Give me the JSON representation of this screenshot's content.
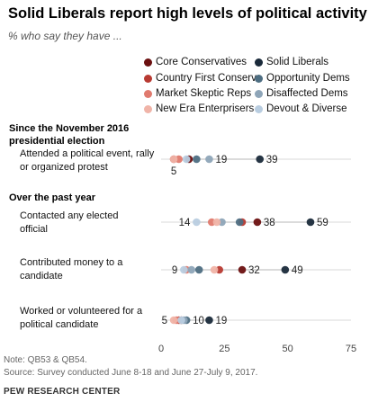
{
  "title": "Solid Liberals report high levels of political activity",
  "subtitle": "% who say they have ...",
  "legend": [
    {
      "name": "Core Conservatives",
      "color": "#6b1010"
    },
    {
      "name": "Solid Liberals",
      "color": "#1a2a3a"
    },
    {
      "name": "Country First Conservs",
      "color": "#b83a32"
    },
    {
      "name": "Opportunity Dems",
      "color": "#4e6e82"
    },
    {
      "name": "Market Skeptic Reps",
      "color": "#e07a6e"
    },
    {
      "name": "Disaffected Dems",
      "color": "#8ea5b8"
    },
    {
      "name": "New Era Enterprisers",
      "color": "#f0b4a8"
    },
    {
      "name": "Devout & Diverse",
      "color": "#b9cde0"
    }
  ],
  "sections": {
    "since_election": "Since the November 2016 presidential election",
    "past_year": "Over the past year"
  },
  "chart_data": {
    "type": "scatter",
    "xlim": [
      0,
      75
    ],
    "x_ticks": [
      "0",
      "25",
      "50",
      "75"
    ],
    "rows": [
      {
        "label": "Attended a political event, rally or organized protest",
        "values": {
          "Core Conservatives": 11,
          "Solid Liberals": 39,
          "Country First Conservs": 5,
          "Opportunity Dems": 14,
          "Market Skeptic Reps": 7,
          "Disaffected Dems": 19,
          "New Era Enterprisers": 5,
          "Devout & Diverse": 10
        },
        "labels": [
          {
            "text": "19",
            "value": 19,
            "pos": "right"
          },
          {
            "text": "39",
            "value": 39,
            "pos": "right"
          },
          {
            "text": "5",
            "value": 5,
            "pos": "below"
          }
        ]
      },
      {
        "label": "Contacted any elected official",
        "values": {
          "Core Conservatives": 38,
          "Solid Liberals": 59,
          "Country First Conservs": 32,
          "Opportunity Dems": 31,
          "Market Skeptic Reps": 20,
          "Disaffected Dems": 24,
          "New Era Enterprisers": 22,
          "Devout & Diverse": 14
        },
        "labels": [
          {
            "text": "14",
            "value": 14,
            "pos": "left"
          },
          {
            "text": "38",
            "value": 38,
            "pos": "right"
          },
          {
            "text": "59",
            "value": 59,
            "pos": "right"
          }
        ]
      },
      {
        "label": "Contributed money to a candidate",
        "values": {
          "Core Conservatives": 32,
          "Solid Liberals": 49,
          "Country First Conservs": 23,
          "Opportunity Dems": 15,
          "Market Skeptic Reps": 10,
          "Disaffected Dems": 12,
          "New Era Enterprisers": 21,
          "Devout & Diverse": 9
        },
        "labels": [
          {
            "text": "9",
            "value": 9,
            "pos": "left"
          },
          {
            "text": "32",
            "value": 32,
            "pos": "right"
          },
          {
            "text": "49",
            "value": 49,
            "pos": "right"
          }
        ]
      },
      {
        "label": "Worked or volunteered for a political candidate",
        "values": {
          "Core Conservatives": 8,
          "Solid Liberals": 19,
          "Country First Conservs": 7,
          "Opportunity Dems": 10,
          "Market Skeptic Reps": 6,
          "Disaffected Dems": 9,
          "New Era Enterprisers": 5,
          "Devout & Diverse": 8
        },
        "labels": [
          {
            "text": "5",
            "value": 5,
            "pos": "left"
          },
          {
            "text": "10",
            "value": 10,
            "pos": "right"
          },
          {
            "text": "19",
            "value": 19,
            "pos": "right"
          }
        ]
      }
    ]
  },
  "note": "Note: QB53 & QB54.",
  "source": "Source: Survey conducted June 8-18 and June 27-July 9, 2017.",
  "brand": "PEW RESEARCH CENTER"
}
